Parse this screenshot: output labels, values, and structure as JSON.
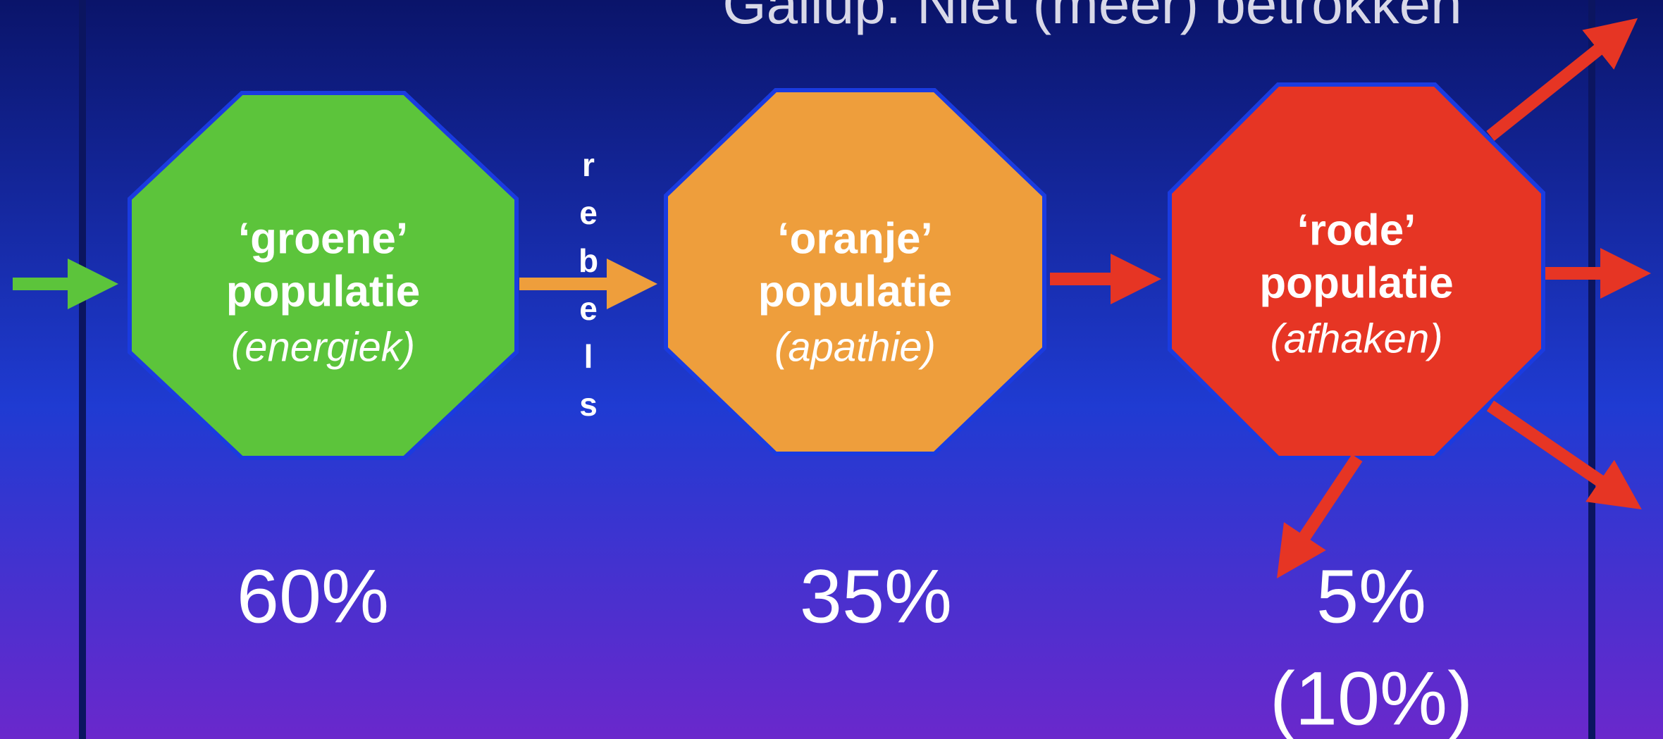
{
  "header": {
    "title": "Gallup: Niet (meer) betrokken"
  },
  "side_label": "rebels",
  "nodes": [
    {
      "quote": "‘groene’",
      "label": "populatie",
      "subtitle": "(energiek)",
      "percent": "60%",
      "color": "#5cc43b"
    },
    {
      "quote": "‘oranje’",
      "label": "populatie",
      "subtitle": "(apathie)",
      "percent": "35%",
      "color": "#ee9e3c"
    },
    {
      "quote": "‘rode’",
      "label": "populatie",
      "subtitle": "(afhaken)",
      "percent": "5%",
      "note": "(10%)",
      "color": "#e63524"
    }
  ]
}
